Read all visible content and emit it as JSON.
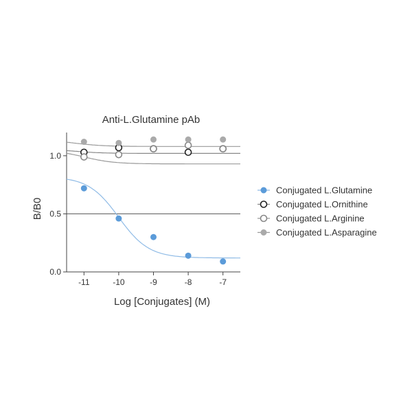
{
  "chart_data": {
    "type": "scatter",
    "title": "Anti-L.Glutamine pAb",
    "xlabel": "Log [Conjugates] (M)",
    "ylabel": "B/B0",
    "xlim": [
      -11.5,
      -6.5
    ],
    "ylim": [
      0,
      1.2
    ],
    "xticks": [
      -11,
      -10,
      -9,
      -8,
      -7
    ],
    "yticks": [
      0.0,
      0.5,
      1.0
    ],
    "xtick_labels": [
      "-11",
      "-10",
      "-9",
      "-8",
      "-7"
    ],
    "ytick_labels": [
      "0.0",
      "0.5",
      "1.0"
    ],
    "reference_line": 0.5,
    "legend_position": "right",
    "series": [
      {
        "name": "Conjugated L.Glutamine",
        "marker": "filled",
        "color": "#5b9bd9",
        "curve_color": "#8fbbe6",
        "x": [
          -11,
          -10,
          -9,
          -8,
          -7
        ],
        "y": [
          0.72,
          0.46,
          0.3,
          0.14,
          0.09
        ],
        "fit": {
          "top": 0.82,
          "bottom": 0.12,
          "ec50_log": -10.0,
          "hill": 1.0
        }
      },
      {
        "name": "Conjugated L.Ornithine",
        "marker": "open",
        "color": "#222222",
        "curve_color": "#888888",
        "x": [
          -11,
          -10,
          -9,
          -8,
          -7
        ],
        "y": [
          1.03,
          1.07,
          1.06,
          1.03,
          1.06
        ],
        "fit": {
          "top": 1.06,
          "bottom": 1.02,
          "ec50_log": -11.3,
          "hill": 1.0
        }
      },
      {
        "name": "Conjugated L.Arginine",
        "marker": "open",
        "color": "#888888",
        "curve_color": "#999999",
        "x": [
          -11,
          -10,
          -9,
          -8,
          -7
        ],
        "y": [
          0.99,
          1.01,
          1.06,
          1.09,
          1.06
        ],
        "fit": {
          "top": 1.05,
          "bottom": 0.93,
          "ec50_log": -11.0,
          "hill": 1.0
        }
      },
      {
        "name": "Conjugated L.Asparagine",
        "marker": "filled",
        "color": "#aaaaaa",
        "curve_color": "#999999",
        "x": [
          -11,
          -10,
          -9,
          -8,
          -7
        ],
        "y": [
          1.12,
          1.11,
          1.14,
          1.14,
          1.14
        ],
        "fit": {
          "top": 1.14,
          "bottom": 1.08,
          "ec50_log": -11.3,
          "hill": 1.0
        }
      }
    ]
  }
}
